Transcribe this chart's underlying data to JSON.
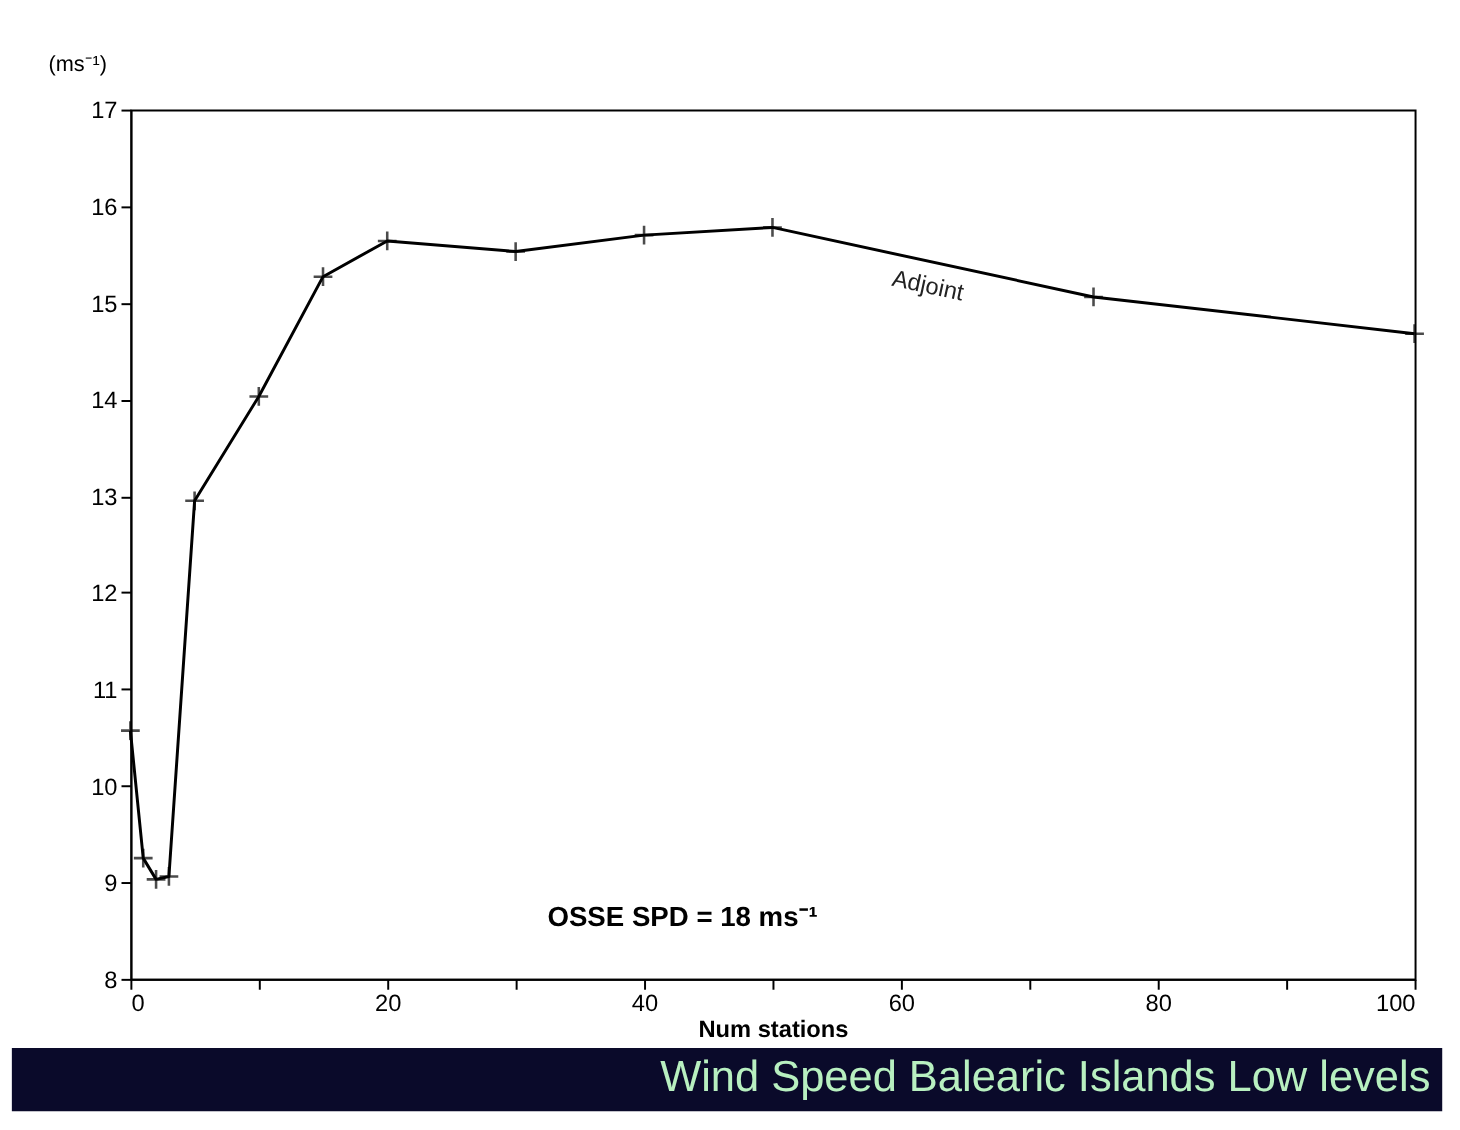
{
  "chart_data": {
    "type": "line",
    "title": "Wind Speed Balearic Islands Low levels",
    "xlabel": "Num stations",
    "ylabel": "(ms⁻¹)",
    "x": [
      0,
      1,
      2,
      3,
      5,
      10,
      15,
      20,
      30,
      40,
      50,
      75,
      100
    ],
    "series": [
      {
        "name": "Adjoint",
        "color": "#000000",
        "values": [
          10.57,
          9.25,
          9.03,
          9.06,
          12.95,
          14.03,
          15.27,
          15.64,
          15.53,
          15.7,
          15.78,
          15.06,
          14.68
        ]
      }
    ],
    "xlim": [
      0,
      100
    ],
    "ylim": [
      8,
      17
    ],
    "xticks": [
      0,
      {
        "value": 10,
        "label": null
      },
      20,
      {
        "value": 30,
        "label": null
      },
      40,
      {
        "value": 50,
        "label": null
      },
      60,
      {
        "value": 70,
        "label": null
      },
      80,
      {
        "value": 90,
        "label": null
      },
      100
    ],
    "yticks": [
      8,
      9,
      10,
      11,
      12,
      13,
      14,
      15,
      16,
      17
    ],
    "annotations": [
      "OSSE SPD = 18 ms⁻¹"
    ],
    "marker": "cross",
    "line_style": "solid",
    "grid": false
  }
}
